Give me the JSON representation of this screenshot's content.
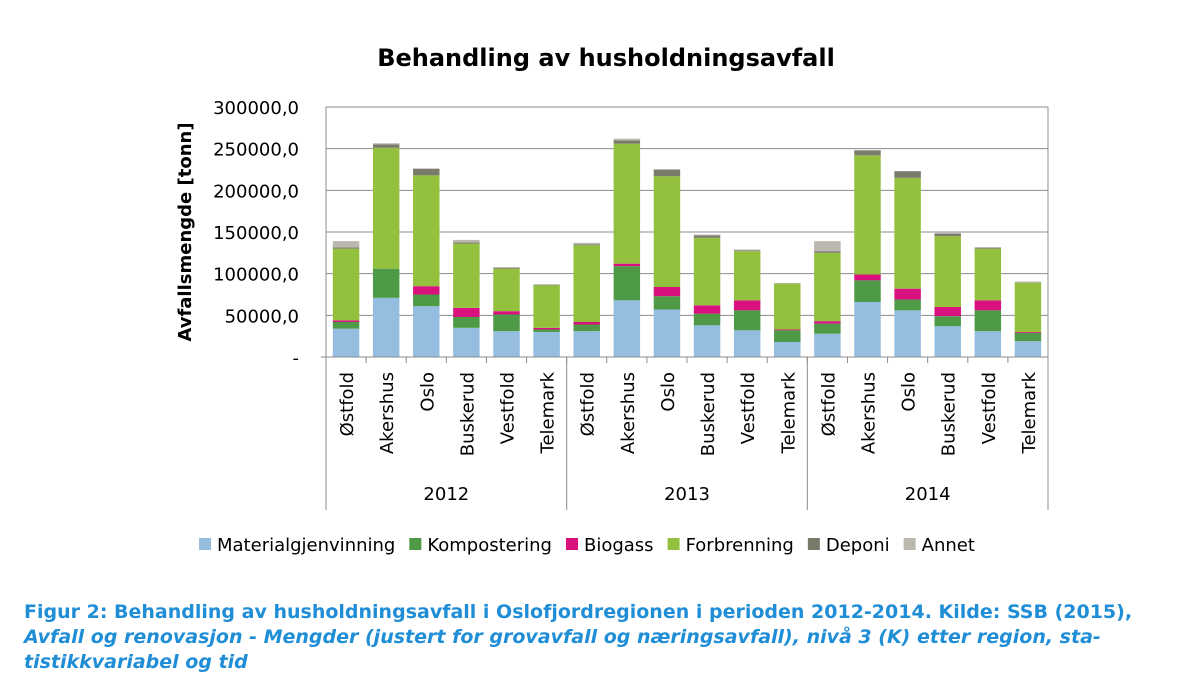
{
  "chart_data": {
    "type": "bar",
    "stacked": true,
    "title": "Behandling av husholdningsavfall",
    "ylabel": "Avfallsmengde [tonn]",
    "ylim": [
      0,
      300000
    ],
    "yticks": [
      "-",
      "50000,0",
      "100000,0",
      "150000,0",
      "200000,0",
      "250000,0",
      "300000,0"
    ],
    "grid": true,
    "legend_position": "bottom",
    "groups": [
      {
        "label": "2012",
        "categories": [
          "Østfold",
          "Akershus",
          "Oslo",
          "Buskerud",
          "Vestfold",
          "Telemark"
        ]
      },
      {
        "label": "2013",
        "categories": [
          "Østfold",
          "Akershus",
          "Oslo",
          "Buskerud",
          "Vestfold",
          "Telemark"
        ]
      },
      {
        "label": "2014",
        "categories": [
          "Østfold",
          "Akershus",
          "Oslo",
          "Buskerud",
          "Vestfold",
          "Telemark"
        ]
      }
    ],
    "series": [
      {
        "name": "Materialgjenvinning",
        "color": "#95bddf",
        "values": [
          34000,
          71000,
          61000,
          35000,
          31000,
          30000,
          31000,
          68000,
          57000,
          38000,
          32000,
          18000,
          28000,
          66000,
          56000,
          37000,
          31000,
          19000
        ]
      },
      {
        "name": "Kompostering",
        "color": "#4e9a47",
        "values": [
          8000,
          35000,
          14000,
          13000,
          20000,
          3000,
          8000,
          41000,
          16000,
          14000,
          24000,
          14000,
          12000,
          26000,
          13000,
          12000,
          25000,
          10000
        ]
      },
      {
        "name": "Biogass",
        "color": "#d9117f",
        "values": [
          2000,
          0,
          10000,
          11000,
          4000,
          2000,
          3000,
          3000,
          11000,
          10000,
          12000,
          1000,
          3000,
          7000,
          13000,
          11000,
          12000,
          1000
        ]
      },
      {
        "name": "Forbrenning",
        "color": "#93c13d",
        "values": [
          86000,
          145000,
          133000,
          77000,
          51000,
          51000,
          92000,
          144000,
          133000,
          81000,
          59000,
          55000,
          82000,
          143000,
          133000,
          85000,
          62000,
          59000
        ]
      },
      {
        "name": "Deponi",
        "color": "#7b7b6c",
        "values": [
          1500,
          4000,
          8000,
          1500,
          1000,
          500,
          1000,
          4000,
          8000,
          3000,
          1000,
          500,
          2000,
          6000,
          8000,
          3000,
          1000,
          500
        ]
      },
      {
        "name": "Annet",
        "color": "#bab8af",
        "values": [
          7500,
          1500,
          0,
          3000,
          1000,
          1000,
          2000,
          2000,
          0,
          1000,
          1000,
          0,
          12000,
          0,
          0,
          1000,
          1000,
          1000
        ]
      }
    ]
  },
  "caption": {
    "line1": "Figur 2: Behandling av husholdningsavfall i Oslofjordregionen i perioden 2012-2014. Kilde: SSB (2015),",
    "line2": "Avfall og renovasjon - Mengder (justert for grovavfall og næringsavfall), nivå 3 (K) etter region, sta-",
    "line3": "tistikkvariabel og tid"
  }
}
